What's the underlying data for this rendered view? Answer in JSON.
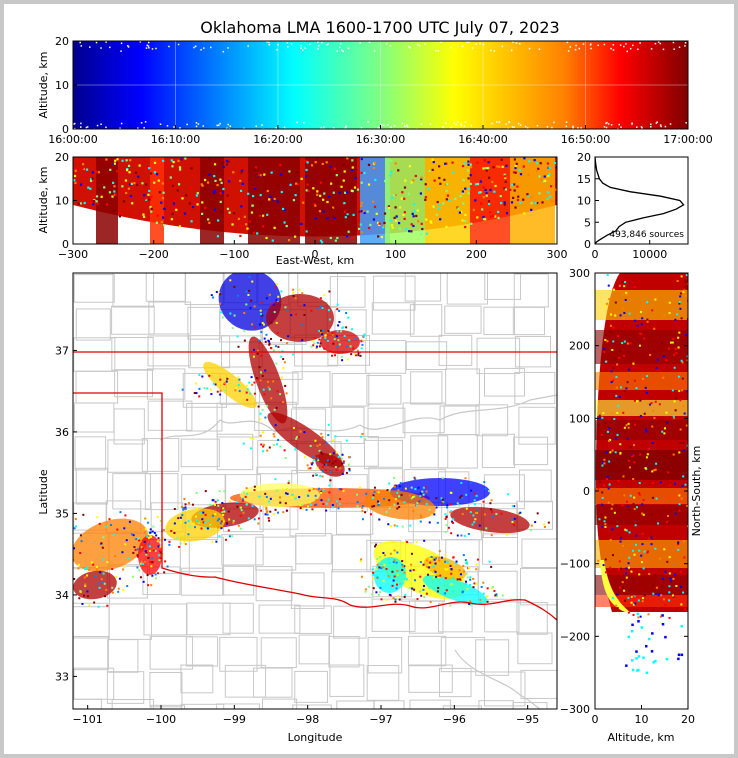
{
  "chart_data": [
    {
      "type": "scatter",
      "title": "Oklahoma LMA 1600-1700 UTC July 07, 2023",
      "xlabel": "",
      "ylabel": "Altitude, km",
      "x_ticks": [
        "16:00:00",
        "16:10:00",
        "16:20:00",
        "16:30:00",
        "16:40:00",
        "16:50:00",
        "17:00:00"
      ],
      "y_ticks": [
        "0",
        "10",
        "20"
      ],
      "xlim": [
        "16:00:00",
        "17:00:00"
      ],
      "ylim": [
        0,
        20
      ],
      "color_by": "time",
      "grid": true
    },
    {
      "type": "scatter",
      "xlabel": "East-West, km",
      "ylabel": "Altitude, km",
      "x_ticks": [
        "−300",
        "−200",
        "−100",
        "0",
        "100",
        "200",
        "300"
      ],
      "y_ticks": [
        "0",
        "10",
        "20"
      ],
      "xlim": [
        -300,
        300
      ],
      "ylim": [
        0,
        20
      ],
      "color_by": "time"
    },
    {
      "type": "line",
      "annotation": "493,846 sources",
      "xlabel": "",
      "ylabel": "",
      "x_ticks": [
        "0",
        "10000"
      ],
      "y_ticks": [
        "0",
        "5",
        "10",
        "15",
        "20"
      ],
      "xlim": [
        0,
        17000
      ],
      "ylim": [
        0,
        20
      ],
      "x": [
        0,
        300,
        900,
        2200,
        3800,
        4400,
        5600,
        8800,
        12500,
        14800,
        16200,
        15500,
        12000,
        6500,
        2800,
        1400,
        800,
        300,
        80,
        0
      ],
      "y": [
        0,
        0.5,
        1,
        2,
        3,
        4,
        5,
        6,
        7,
        8,
        9,
        10,
        11,
        12,
        13,
        14,
        15,
        17,
        19,
        20
      ]
    },
    {
      "type": "scatter",
      "xlabel": "Longitude",
      "ylabel": "Latitude",
      "x_ticks": [
        "−101",
        "−100",
        "−99",
        "−98",
        "−97",
        "−96",
        "−95"
      ],
      "y_ticks": [
        "33",
        "34",
        "35",
        "36",
        "37"
      ],
      "xlim": [
        -101.2,
        -94.6
      ],
      "ylim": [
        32.6,
        37.95
      ],
      "color_by": "time"
    },
    {
      "type": "scatter",
      "xlabel": "Altitude, km",
      "ylabel": "North-South, km",
      "x_ticks": [
        "0",
        "10",
        "20"
      ],
      "y_ticks": [
        "−300",
        "−200",
        "−100",
        "0",
        "100",
        "200",
        "300"
      ],
      "xlim": [
        0,
        20
      ],
      "ylim": [
        -300,
        300
      ],
      "color_by": "time"
    }
  ],
  "colors": {
    "jet": [
      "#00008f",
      "#0000ff",
      "#0080ff",
      "#00ffff",
      "#80ff80",
      "#ffff00",
      "#ff8000",
      "#ff0000",
      "#800000"
    ],
    "state_border": "#e00000",
    "county_lines": "#c8c8c8"
  }
}
